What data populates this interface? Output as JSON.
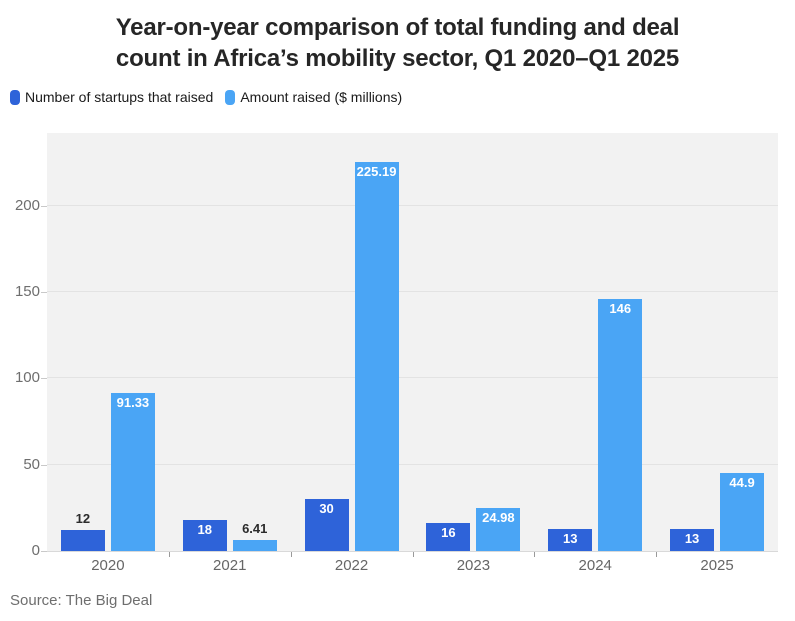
{
  "title": {
    "line1": "Year-on-year comparison of total funding and deal",
    "line2": "count in Africa’s mobility sector, Q1 2020–Q1 2025"
  },
  "legend": {
    "items": [
      {
        "label": "Number of startups that raised",
        "color": "#2e63d9"
      },
      {
        "label": "Amount raised ($ millions)",
        "color": "#4aa5f5"
      }
    ]
  },
  "source": "Source: The Big Deal",
  "chart_data": {
    "type": "bar",
    "title": "Year-on-year comparison of total funding and deal count in Africa’s mobility sector, Q1 2020–Q1 2025",
    "categories": [
      "2020",
      "2021",
      "2022",
      "2023",
      "2024",
      "2025"
    ],
    "series": [
      {
        "name": "Number of startups that raised",
        "key": "startups",
        "color": "#2e63d9",
        "values": [
          12,
          18,
          30,
          16,
          13,
          13
        ],
        "labels": [
          "12",
          "18",
          "30",
          "16",
          "13",
          "13"
        ]
      },
      {
        "name": "Amount raised ($ millions)",
        "key": "amount",
        "color": "#4aa5f5",
        "values": [
          91.33,
          6.41,
          225.19,
          24.98,
          146,
          44.9
        ],
        "labels": [
          "91.33",
          "6.41",
          "225.19",
          "24.98",
          "146",
          "44.9"
        ]
      }
    ],
    "xlabel": "",
    "ylabel": "",
    "yticks": [
      0,
      50,
      100,
      150,
      200
    ],
    "ylim": [
      0,
      242
    ],
    "grid": true,
    "plot_bg": "#f2f2f2",
    "legend_position": "top-left"
  }
}
